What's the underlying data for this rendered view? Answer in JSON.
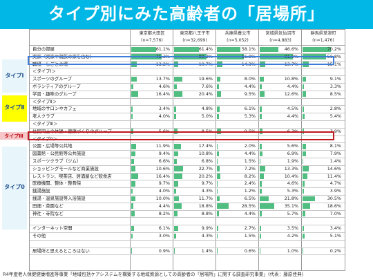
{
  "title": "タイプ別にみた高齢者の「居場所」",
  "columns": [
    {
      "name": "東京都大田区",
      "n": "(n=7,576)"
    },
    {
      "name": "東京都八王子市",
      "n": "(n=32,699)"
    },
    {
      "name": "兵庫県養父市",
      "n": "(n=5,052)"
    },
    {
      "name": "宮城県気仙沼市",
      "n": "(n=4,883)"
    },
    {
      "name": "群馬県草津町",
      "n": "(n=1,476)"
    }
  ],
  "tags": {
    "type1": "タイプⅠ",
    "type2": "タイプⅡ",
    "type3": "タイプⅢ",
    "type0": "タイプ0"
  },
  "rows": [
    {
      "label": "自分の部屋",
      "values": [
        "61.1%",
        "61.4%",
        "58.1%",
        "46.6%",
        "70.2%"
      ],
      "nums": [
        61.1,
        61.4,
        58.1,
        46.6,
        70.2
      ]
    },
    {
      "label": "実家（実家や親族の家を含む）",
      "values": [
        "75.3%",
        "80.3%",
        "66.8%",
        "81.0%",
        "56.8%"
      ],
      "nums": [
        75.3,
        80.3,
        66.8,
        81.0,
        56.8
      ]
    },
    {
      "label": "職場・しごとの場",
      "values": [
        "13.2%",
        "10.7%",
        "14.3%",
        "13.7%",
        "15.1%"
      ],
      "nums": [
        13.2,
        10.7,
        14.3,
        13.7,
        15.1
      ]
    },
    {
      "label": "＜タイプⅠ＞",
      "header": true
    },
    {
      "label": "スポーツのグループ",
      "values": [
        "13.7%",
        "19.6%",
        "8.0%",
        "10.8%",
        "9.1%"
      ],
      "nums": [
        13.7,
        19.6,
        8.0,
        10.8,
        9.1
      ]
    },
    {
      "label": "ボランティアのグループ",
      "values": [
        "4.6%",
        "7.6%",
        "4.4%",
        "4.4%",
        "3.3%"
      ],
      "nums": [
        4.6,
        7.6,
        4.4,
        4.4,
        3.3
      ]
    },
    {
      "label": "学習・趣味のグループ",
      "values": [
        "16.4%",
        "20.4%",
        "9.5%",
        "12.6%",
        "8.5%"
      ],
      "nums": [
        16.4,
        20.4,
        9.5,
        12.6,
        8.5
      ]
    },
    {
      "label": "＜タイプⅡ＞",
      "header": true
    },
    {
      "label": "地域のサロンやカフェ",
      "values": [
        "3.4%",
        "4.8%",
        "6.1%",
        "4.5%",
        "2.8%"
      ],
      "nums": [
        3.4,
        4.8,
        6.1,
        4.5,
        2.8
      ]
    },
    {
      "label": "老人クラブ",
      "values": [
        "4.0%",
        "5.0%",
        "5.3%",
        "4.4%",
        "5.4%"
      ],
      "nums": [
        4.0,
        5.0,
        5.3,
        4.4,
        5.4
      ]
    },
    {
      "label": "＜タイプⅢ＞",
      "header": true
    },
    {
      "label": "住民同士の体操・健康づくりのグループ",
      "values": [
        "5.6%",
        "8.5%",
        "9.5%",
        "6.3%",
        "3.9%"
      ],
      "nums": [
        5.6,
        8.5,
        9.5,
        6.3,
        3.9
      ]
    },
    {
      "label": "＜タイプ0＞",
      "header": true
    },
    {
      "label": "公園・広場等公共地",
      "values": [
        "11.9%",
        "17.4%",
        "2.0%",
        "5.6%",
        "8.1%"
      ],
      "nums": [
        11.9,
        17.4,
        2.0,
        5.6,
        8.1
      ]
    },
    {
      "label": "図書館・公民館等公共施設",
      "values": [
        "9.4%",
        "10.8%",
        "4.4%",
        "6.9%",
        "7.9%"
      ],
      "nums": [
        9.4,
        10.8,
        4.4,
        6.9,
        7.9
      ]
    },
    {
      "label": "スポーツクラブ（ジム）",
      "values": [
        "6.6%",
        "6.8%",
        "1.5%",
        "1.9%",
        "1.4%"
      ],
      "nums": [
        6.6,
        6.8,
        1.5,
        1.9,
        1.4
      ]
    },
    {
      "label": "ショッピングモールなど商業施設",
      "values": [
        "10.6%",
        "22.7%",
        "7.2%",
        "13.3%",
        "14.6%"
      ],
      "nums": [
        10.6,
        22.7,
        7.2,
        13.3,
        14.6
      ]
    },
    {
      "label": "レストラン、喫茶店、居酒屋など飲食店",
      "values": [
        "16.4%",
        "20.2%",
        "8.2%",
        "10.4%",
        "11.4%"
      ],
      "nums": [
        16.4,
        20.2,
        8.2,
        10.4,
        11.4
      ]
    },
    {
      "label": "医療機関、整体・整骨院",
      "values": [
        "9.7%",
        "9.7%",
        "2.4%",
        "4.6%",
        "4.7%"
      ],
      "nums": [
        9.7,
        9.7,
        2.4,
        4.6,
        4.7
      ]
    },
    {
      "label": "銭湯施設",
      "values": [
        "4.0%",
        "4.3%",
        "1.2%",
        "5.3%",
        "3.9%"
      ],
      "nums": [
        4.0,
        4.3,
        1.2,
        5.3,
        3.9
      ]
    },
    {
      "label": "銭湯・温泉施設等入浴施設",
      "values": [
        "10.0%",
        "11.7%",
        "6.5%",
        "21.8%",
        "30.5%"
      ],
      "nums": [
        10.0,
        11.7,
        6.5,
        21.8,
        30.5
      ]
    },
    {
      "label": "田畑・菜園など",
      "values": [
        "4.4%",
        "18.8%",
        "28.5%",
        "35.1%",
        "18.6%"
      ],
      "nums": [
        4.4,
        18.8,
        28.5,
        35.1,
        18.6
      ]
    },
    {
      "label": "神社・寺院など",
      "values": [
        "8.2%",
        "8.8%",
        "4.4%",
        "5.7%",
        "7.0%"
      ],
      "nums": [
        8.2,
        8.8,
        4.4,
        5.7,
        7.0
      ]
    },
    {
      "label": "",
      "blank": true
    },
    {
      "label": "インターネット空間",
      "values": [
        "6.1%",
        "9.9%",
        "2.7%",
        "3.5%",
        "3.4%"
      ],
      "nums": [
        6.1,
        9.9,
        2.7,
        3.5,
        3.4
      ]
    },
    {
      "label": "その他",
      "values": [
        "3.0%",
        "4.3%",
        "1.5%",
        "4.2%",
        "5.1%"
      ],
      "nums": [
        3.0,
        4.3,
        1.5,
        4.2,
        5.1
      ]
    },
    {
      "label": "",
      "blank": true
    },
    {
      "label": "居場所と思えるところはない",
      "values": [
        "0.9%",
        "1.4%",
        "0.6%",
        "1.0%",
        "0.2%"
      ],
      "nums": [
        0.9,
        1.4,
        0.6,
        1.0,
        0.2
      ]
    }
  ],
  "footer": "R4年度老人保健健康増進等事業「地域包括ケアシステムを構築する地域資源としての高齢者の「居場所」に関する調査研究事業」(代表：藤原佳典)",
  "colors": {
    "title_bg": "#00b7e6",
    "bar": "#33b36b",
    "frame_blue": "#3b7dd8",
    "frame_red": "#c0161e",
    "tag_yellow": "#ffff00",
    "tag_pink": "#f6c6c8",
    "tag_text": "#1f4e8c"
  }
}
